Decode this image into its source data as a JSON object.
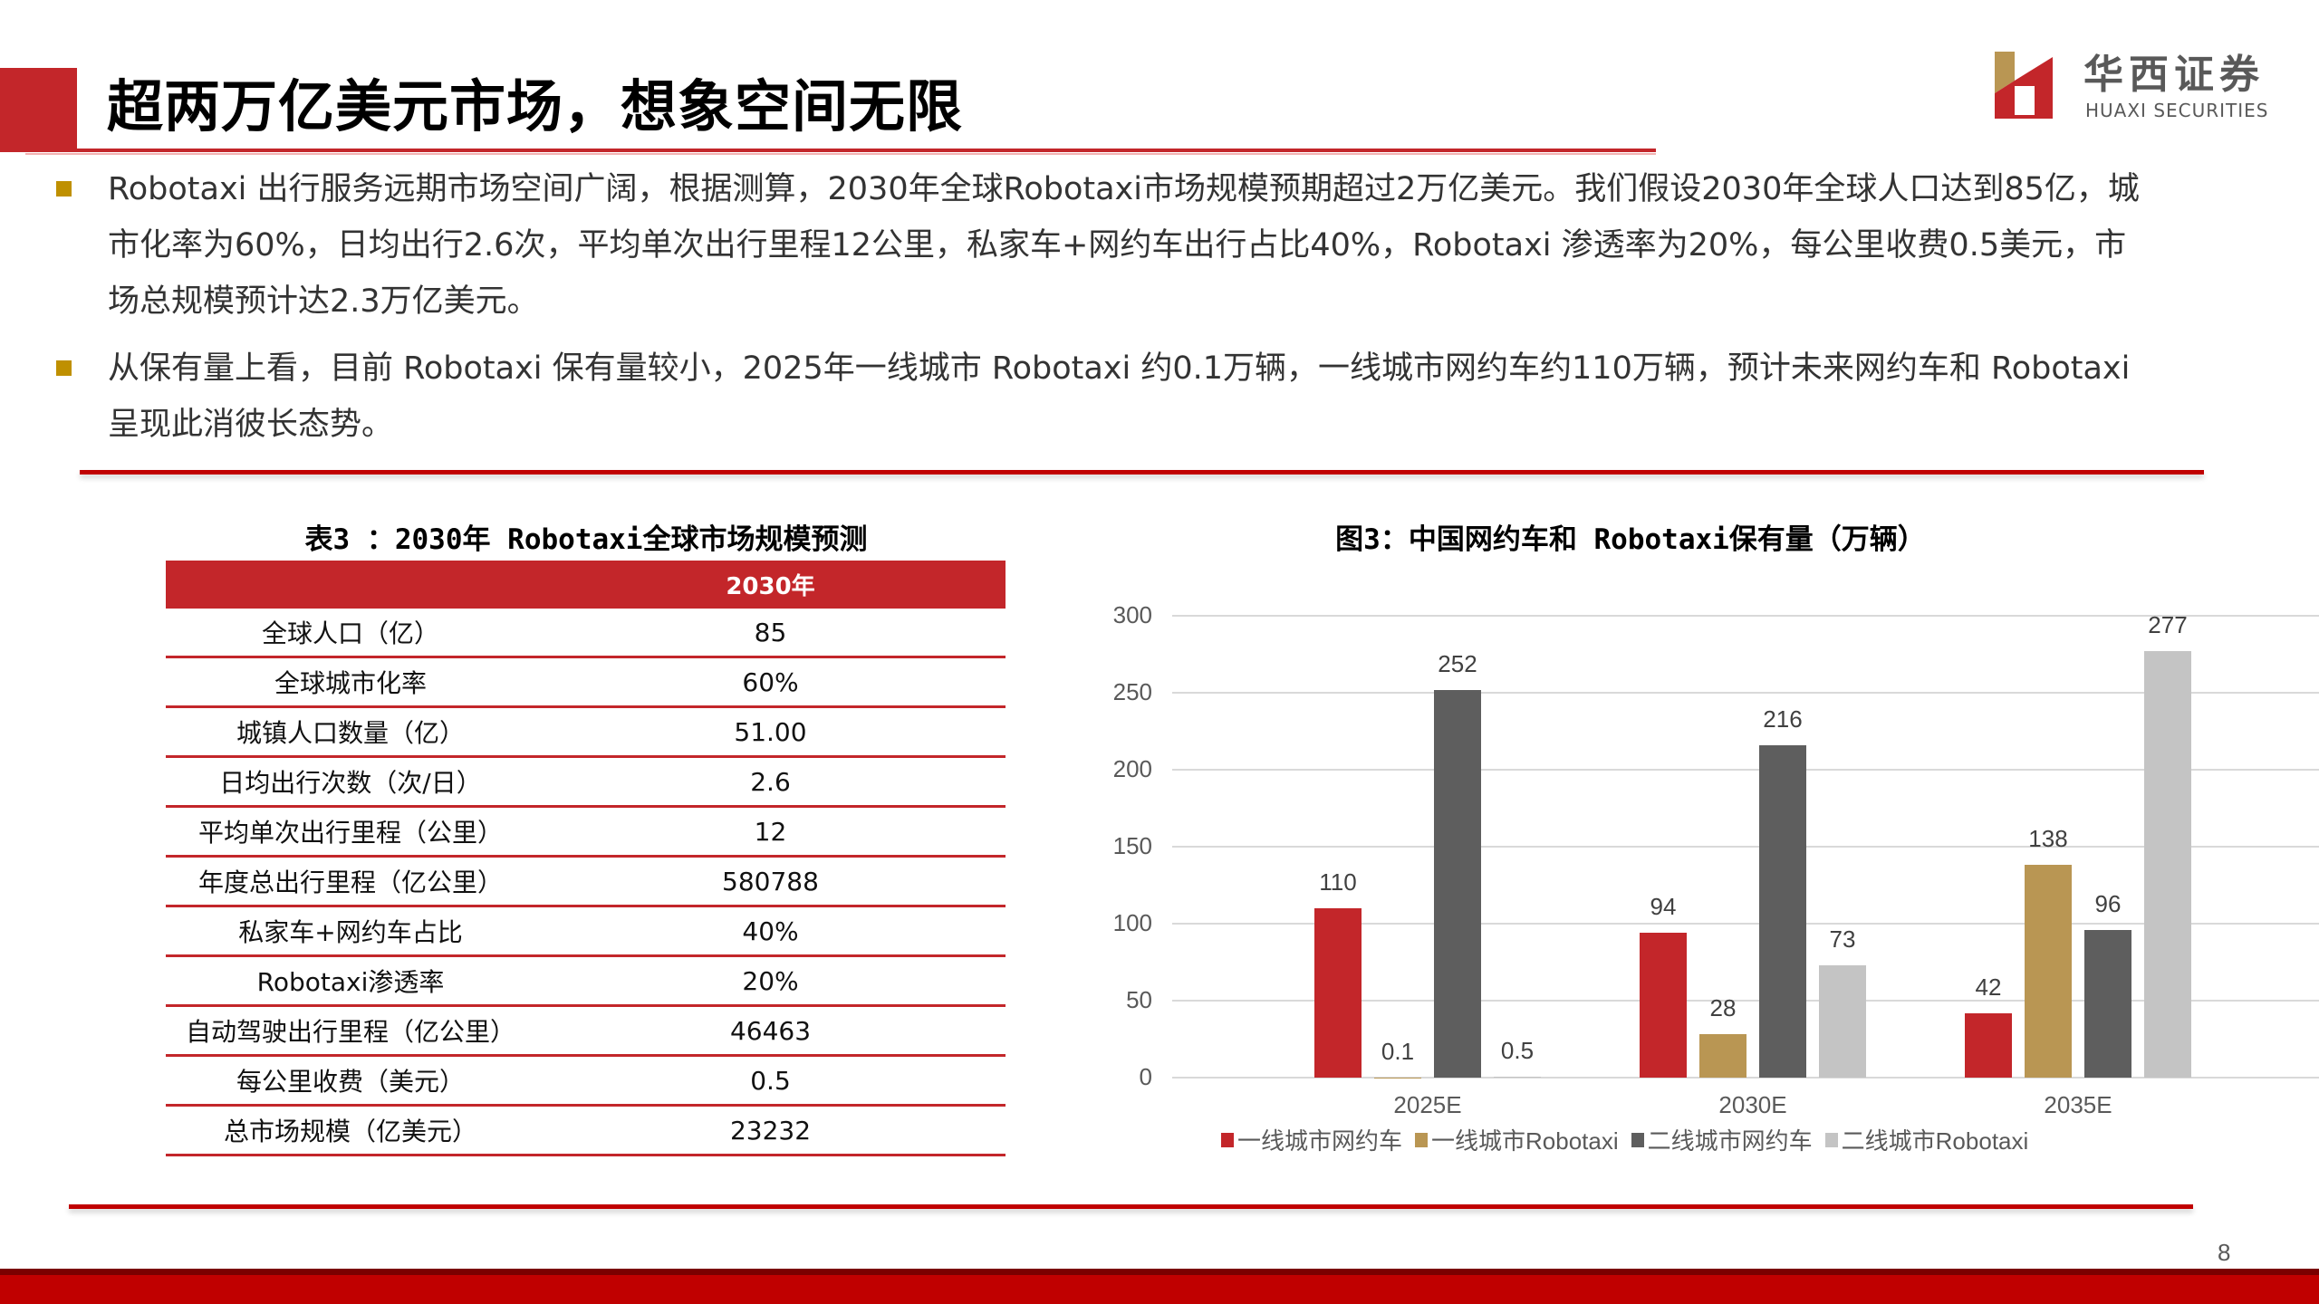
{
  "header": {
    "title": "超两万亿美元市场，想象空间无限",
    "logo_cn": "华西证券",
    "logo_en": "HUAXI SECURITIES"
  },
  "bullets": [
    {
      "text": "Robotaxi 出行服务远期市场空间广阔，根据测算，2030年全球Robotaxi市场规模预期超过2万亿美元。我们假设2030年全球人口达到85亿，城市化率为60%，日均出行2.6次，平均单次出行里程12公里，私家车+网约车出行占比40%，Robotaxi 渗透率为20%，每公里收费0.5美元，市场总规模预计达2.3万亿美元。"
    },
    {
      "text": "从保有量上看，目前 Robotaxi 保有量较小，2025年一线城市 Robotaxi 约0.1万辆，一线城市网约车约110万辆，预计未来网约车和 Robotaxi呈现此消彼长态势。"
    }
  ],
  "table": {
    "title": "表3 ：2030年 Robotaxi全球市场规模预测",
    "header": [
      "",
      "2030年"
    ],
    "rows": [
      {
        "label": "全球人口（亿）",
        "value": "85"
      },
      {
        "label": "全球城市化率",
        "value": "60%"
      },
      {
        "label": "城镇人口数量（亿）",
        "value": "51.00"
      },
      {
        "label": "日均出行次数（次/日）",
        "value": "2.6"
      },
      {
        "label": "平均单次出行里程（公里）",
        "value": "12"
      },
      {
        "label": "年度总出行里程（亿公里）",
        "value": "580788"
      },
      {
        "label": "私家车+网约车占比",
        "value": "40%"
      },
      {
        "label": "Robotaxi渗透率",
        "value": "20%"
      },
      {
        "label": "自动驾驶出行里程（亿公里）",
        "value": "46463"
      },
      {
        "label": "每公里收费（美元）",
        "value": "0.5"
      },
      {
        "label": "总市场规模（亿美元）",
        "value": "23232"
      }
    ]
  },
  "chart_data": {
    "type": "bar",
    "title": "图3：中国网约车和 Robotaxi保有量（万辆）",
    "categories": [
      "2025E",
      "2030E",
      "2035E"
    ],
    "series": [
      {
        "name": "一线城市网约车",
        "color": "#c3262a",
        "values": [
          110,
          94,
          42
        ],
        "labels": [
          "110",
          "94",
          "42"
        ]
      },
      {
        "name": "一线城市Robotaxi",
        "color": "#b99653",
        "values": [
          0.1,
          28,
          138
        ],
        "labels": [
          "0.1",
          "28",
          "138"
        ]
      },
      {
        "name": "二线城市网约车",
        "color": "#5e5e5e",
        "values": [
          252,
          216,
          96
        ],
        "labels": [
          "252",
          "216",
          "96"
        ]
      },
      {
        "name": "二线城市Robotaxi",
        "color": "#c4c4c4",
        "values": [
          0.5,
          73,
          277
        ],
        "labels": [
          "0.5",
          "73",
          "277"
        ]
      }
    ],
    "yticks": [
      "0",
      "50",
      "100",
      "150",
      "200",
      "250",
      "300"
    ],
    "ylim": [
      0,
      300
    ],
    "xlabel": "",
    "ylabel": "",
    "grid": true,
    "legend_position": "bottom"
  },
  "footer": {
    "page_number": "8"
  }
}
